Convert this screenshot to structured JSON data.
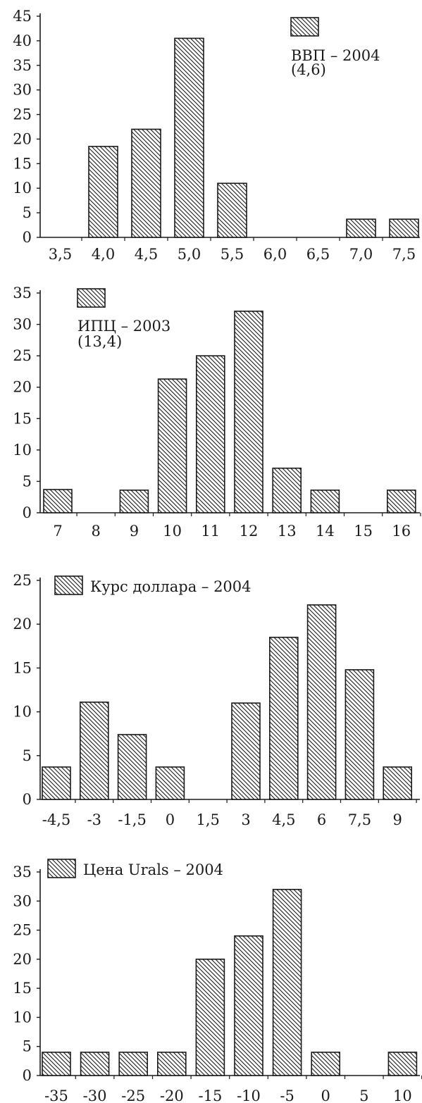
{
  "colors": {
    "ink": "#1a1a1a",
    "background": "#ffffff",
    "bar_fill": "hatched"
  },
  "chart_data": [
    {
      "type": "bar",
      "xlabel": "",
      "ylabel": "",
      "ylim": [
        0,
        45
      ],
      "yticks": [
        "0",
        "5",
        "10",
        "15",
        "20",
        "25",
        "30",
        "35",
        "40",
        "45"
      ],
      "categories": [
        "3,5",
        "4,0",
        "4,5",
        "5,0",
        "5,5",
        "6,0",
        "6,5",
        "7,0",
        "7,5"
      ],
      "series": [
        {
          "name": "ВВП – 2004 (4,6)",
          "values": [
            0,
            18.5,
            22,
            40.5,
            11,
            0,
            0,
            3.7,
            3.7
          ]
        }
      ],
      "legend": {
        "line1": "ВВП –  2004",
        "line2": "(4,6)",
        "position": "top-right"
      }
    },
    {
      "type": "bar",
      "xlabel": "",
      "ylabel": "",
      "ylim": [
        0,
        35
      ],
      "yticks": [
        "0",
        "5",
        "10",
        "15",
        "20",
        "25",
        "30",
        "35"
      ],
      "categories": [
        "7",
        "8",
        "9",
        "10",
        "11",
        "12",
        "13",
        "14",
        "15",
        "16"
      ],
      "series": [
        {
          "name": "ИПЦ – 2003 (13,4)",
          "values": [
            3.7,
            0,
            3.6,
            21.3,
            25,
            32.1,
            7.1,
            3.6,
            0,
            3.6
          ]
        }
      ],
      "legend": {
        "line1": "ИПЦ –  2003",
        "line2": "(13,4)",
        "position": "top-left"
      }
    },
    {
      "type": "bar",
      "xlabel": "",
      "ylabel": "",
      "ylim": [
        0,
        25
      ],
      "yticks": [
        "0",
        "5",
        "10",
        "15",
        "20",
        "25"
      ],
      "categories": [
        "-4,5",
        "-3",
        "-1,5",
        "0",
        "1,5",
        "3",
        "4,5",
        "6",
        "7,5",
        "9"
      ],
      "series": [
        {
          "name": "Курс доллара – 2004",
          "values": [
            3.7,
            11.1,
            7.4,
            3.7,
            0,
            11,
            18.5,
            22.2,
            14.8,
            3.7
          ]
        }
      ],
      "legend": {
        "line1": "Курс доллара –  2004",
        "line2": "",
        "position": "top-left"
      }
    },
    {
      "type": "bar",
      "xlabel": "",
      "ylabel": "",
      "ylim": [
        0,
        35
      ],
      "yticks": [
        "0",
        "5",
        "10",
        "15",
        "20",
        "25",
        "30",
        "35"
      ],
      "categories": [
        "-35",
        "-30",
        "-25",
        "-20",
        "-15",
        "-10",
        "-5",
        "0",
        "5",
        "10"
      ],
      "series": [
        {
          "name": "Цена Urals – 2004",
          "values": [
            4,
            4,
            4,
            4,
            20,
            24,
            32,
            4,
            0,
            4
          ]
        }
      ],
      "legend": {
        "line1": "Цена Urals –  2004",
        "line2": "",
        "position": "top-left"
      }
    }
  ]
}
